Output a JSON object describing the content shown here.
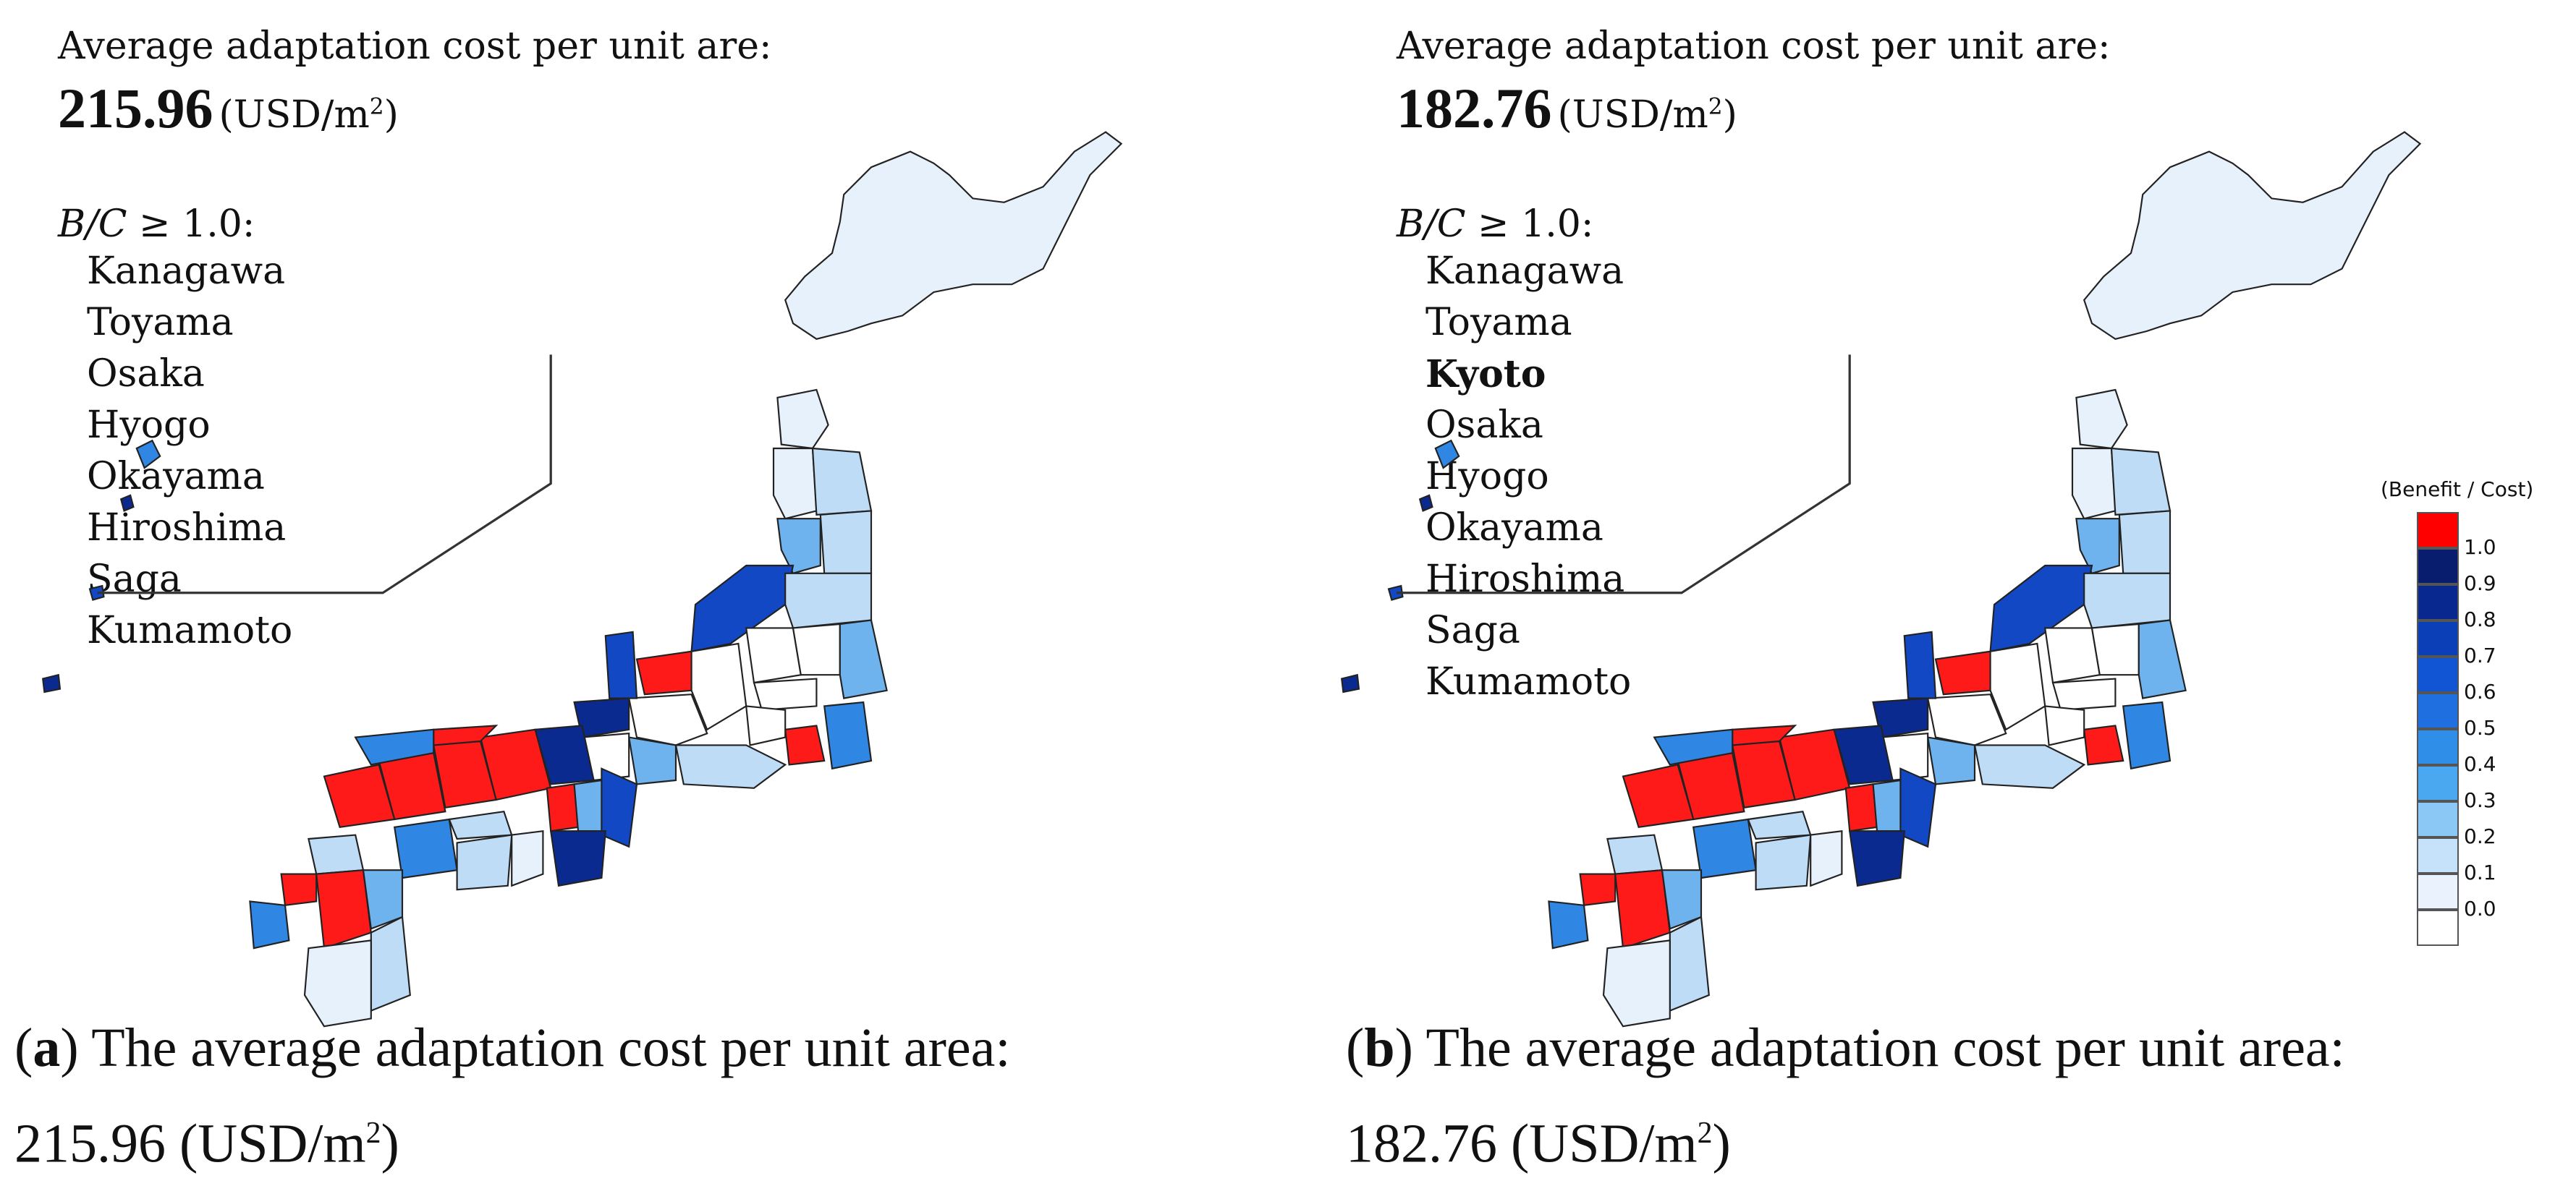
{
  "panels": [
    {
      "id": "a",
      "header": "Average adaptation cost per unit are:",
      "value": "215.96",
      "unit": "(USD/m",
      "unit_sup": "2",
      "unit_close": ")",
      "bc_label_italic": "B/C",
      "bc_label_rest": " ≥ 1.0:",
      "prefectures": [
        "Kanagawa",
        "Toyama",
        "Osaka",
        "Hyogo",
        "Okayama",
        "Hiroshima",
        "Saga",
        "Kumamoto"
      ],
      "caption_letter": "a",
      "caption_text": ") The average adaptation cost per unit area:",
      "caption_value": "215.96 (USD/m",
      "caption_sup": "2",
      "caption_close": ")"
    },
    {
      "id": "b",
      "header": "Average adaptation cost per unit are:",
      "value": "182.76",
      "unit": "(USD/m",
      "unit_sup": "2",
      "unit_close": ")",
      "bc_label_italic": "B/C",
      "bc_label_rest": " ≥ 1.0:",
      "prefectures": [
        "Kanagawa",
        "Toyama",
        "Kyoto",
        "Osaka",
        "Hyogo",
        "Okayama",
        "Hiroshima",
        "Saga",
        "Kumamoto"
      ],
      "bold_prefecture": "Kyoto",
      "caption_letter": "b",
      "caption_text": ") The average adaptation cost per unit area:",
      "caption_value": "182.76 (USD/m",
      "caption_sup": "2",
      "caption_close": ")"
    }
  ],
  "legend": {
    "title": "(Benefit / Cost)",
    "ticks": [
      "1.0",
      "0.9",
      "0.8",
      "0.7",
      "0.6",
      "0.5",
      "0.4",
      "0.3",
      "0.2",
      "0.1",
      "0.0"
    ],
    "colors": [
      "#ff0000",
      "#081d6e",
      "#08288f",
      "#0a3fb8",
      "#1255d4",
      "#1f6fe0",
      "#2f8fe8",
      "#4aa8f0",
      "#8cc8f5",
      "#c6e2fa",
      "#eaf3fd",
      "#ffffff"
    ]
  },
  "map_colors": {
    "bc_over_one": "#ff1a1a",
    "very_light": "#e6f1fc",
    "light": "#bfdcf7",
    "medium": "#6fb3ee",
    "strong": "#2f86e3",
    "deep": "#1248c4",
    "deepest": "#0b2a90",
    "white": "#ffffff",
    "outline": "#222222"
  }
}
